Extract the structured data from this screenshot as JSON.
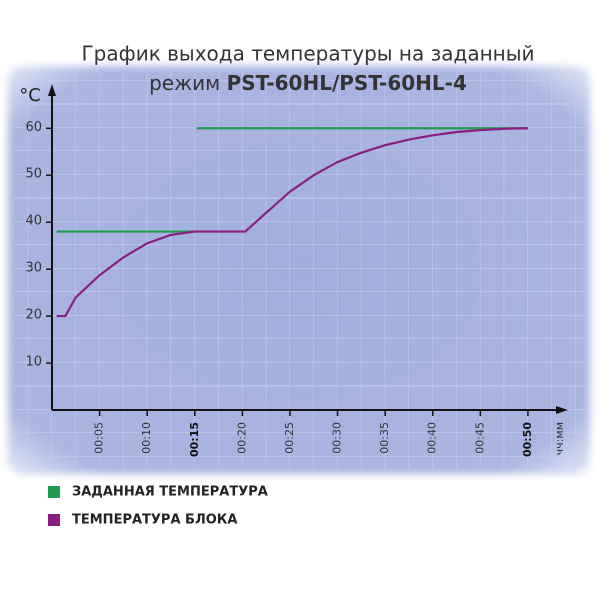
{
  "chart_data": {
    "type": "line",
    "title_line1": "График выхода температуры на заданный",
    "title_line2": "режим",
    "title_model": "PST-60HL/PST-60HL-4",
    "y_label": "°C",
    "x_label": "чч:мм",
    "xlim": [
      0,
      54
    ],
    "ylim": [
      0,
      69
    ],
    "xticks": [
      {
        "value": 5,
        "label": "00:05"
      },
      {
        "value": 10,
        "label": "00:10"
      },
      {
        "value": 15,
        "label": "00:15"
      },
      {
        "value": 20,
        "label": "00:20"
      },
      {
        "value": 25,
        "label": "00:25"
      },
      {
        "value": 30,
        "label": "00:30"
      },
      {
        "value": 35,
        "label": "00:35"
      },
      {
        "value": 40,
        "label": "00:40"
      },
      {
        "value": 45,
        "label": "00:45"
      },
      {
        "value": 50,
        "label": "00:50"
      }
    ],
    "bold_xticks": [
      15,
      50
    ],
    "yticks": [
      10,
      20,
      30,
      40,
      50,
      60
    ],
    "series": [
      {
        "name": "ЗАДАННАЯ ТЕМПЕРАТУРА",
        "color": "#1f9a4e",
        "x": [
          0.5,
          15,
          15,
          15.2,
          50
        ],
        "values": [
          38,
          38,
          null,
          60,
          60
        ]
      },
      {
        "name": "ТЕМПЕРАТУРА БЛОКА",
        "color": "#8a1f80",
        "x": [
          0.5,
          1.4,
          2.5,
          5,
          7.5,
          10,
          12.5,
          15,
          20.3,
          22.5,
          25,
          27.5,
          30,
          32.5,
          35,
          37.5,
          40,
          42.5,
          45,
          47.5,
          50
        ],
        "values": [
          20,
          20,
          24,
          28.7,
          32.5,
          35.5,
          37.3,
          38,
          38,
          42,
          46.5,
          50,
          52.8,
          54.8,
          56.4,
          57.6,
          58.5,
          59.2,
          59.6,
          59.9,
          60
        ]
      }
    ]
  }
}
